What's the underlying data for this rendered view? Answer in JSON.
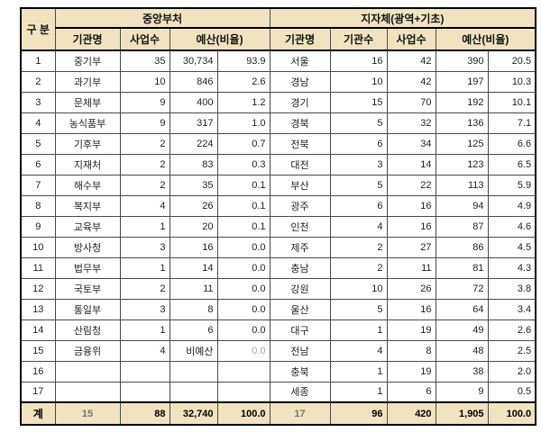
{
  "colors": {
    "header_bg": "#f2e3c0",
    "outer_border": "#000000",
    "inner_border": "#4a4a4a",
    "muted_text": "#a6a6a6"
  },
  "table": {
    "headers": {
      "corner": "구 분",
      "central": {
        "title": "중앙부처",
        "cols": {
          "name": "기관명",
          "projects": "사업수",
          "budget": "예산(비율)"
        }
      },
      "local": {
        "title": "지자체(광역+기초)",
        "cols": {
          "name": "기관명",
          "orgs": "기관수",
          "projects": "사업수",
          "budget": "예산(비율)"
        }
      }
    },
    "rows": [
      {
        "no": "1",
        "c_name": "중기부",
        "c_proj": "35",
        "c_budget": "30,734",
        "c_ratio": "93.9",
        "c_ratio_muted": false,
        "l_name": "서울",
        "l_orgs": "16",
        "l_proj": "42",
        "l_budget": "390",
        "l_ratio": "20.5"
      },
      {
        "no": "2",
        "c_name": "과기부",
        "c_proj": "10",
        "c_budget": "846",
        "c_ratio": "2.6",
        "c_ratio_muted": false,
        "l_name": "경남",
        "l_orgs": "10",
        "l_proj": "42",
        "l_budget": "197",
        "l_ratio": "10.3"
      },
      {
        "no": "3",
        "c_name": "문체부",
        "c_proj": "9",
        "c_budget": "400",
        "c_ratio": "1.2",
        "c_ratio_muted": false,
        "l_name": "경기",
        "l_orgs": "15",
        "l_proj": "70",
        "l_budget": "192",
        "l_ratio": "10.1"
      },
      {
        "no": "4",
        "c_name": "농식품부",
        "c_proj": "9",
        "c_budget": "317",
        "c_ratio": "1.0",
        "c_ratio_muted": false,
        "l_name": "경북",
        "l_orgs": "5",
        "l_proj": "32",
        "l_budget": "136",
        "l_ratio": "7.1"
      },
      {
        "no": "5",
        "c_name": "기후부",
        "c_proj": "2",
        "c_budget": "224",
        "c_ratio": "0.7",
        "c_ratio_muted": false,
        "l_name": "전북",
        "l_orgs": "6",
        "l_proj": "34",
        "l_budget": "125",
        "l_ratio": "6.6"
      },
      {
        "no": "6",
        "c_name": "지재처",
        "c_proj": "2",
        "c_budget": "83",
        "c_ratio": "0.3",
        "c_ratio_muted": false,
        "l_name": "대전",
        "l_orgs": "3",
        "l_proj": "14",
        "l_budget": "123",
        "l_ratio": "6.5"
      },
      {
        "no": "7",
        "c_name": "해수부",
        "c_proj": "2",
        "c_budget": "35",
        "c_ratio": "0.1",
        "c_ratio_muted": false,
        "l_name": "부산",
        "l_orgs": "5",
        "l_proj": "22",
        "l_budget": "113",
        "l_ratio": "5.9"
      },
      {
        "no": "8",
        "c_name": "복지부",
        "c_proj": "4",
        "c_budget": "26",
        "c_ratio": "0.1",
        "c_ratio_muted": false,
        "l_name": "광주",
        "l_orgs": "6",
        "l_proj": "16",
        "l_budget": "94",
        "l_ratio": "4.9"
      },
      {
        "no": "9",
        "c_name": "교육부",
        "c_proj": "1",
        "c_budget": "20",
        "c_ratio": "0.1",
        "c_ratio_muted": false,
        "l_name": "인천",
        "l_orgs": "4",
        "l_proj": "16",
        "l_budget": "87",
        "l_ratio": "4.6"
      },
      {
        "no": "10",
        "c_name": "방사청",
        "c_proj": "3",
        "c_budget": "16",
        "c_ratio": "0.0",
        "c_ratio_muted": false,
        "l_name": "제주",
        "l_orgs": "2",
        "l_proj": "27",
        "l_budget": "86",
        "l_ratio": "4.5"
      },
      {
        "no": "11",
        "c_name": "법무부",
        "c_proj": "1",
        "c_budget": "14",
        "c_ratio": "0.0",
        "c_ratio_muted": false,
        "l_name": "충남",
        "l_orgs": "2",
        "l_proj": "11",
        "l_budget": "81",
        "l_ratio": "4.3"
      },
      {
        "no": "12",
        "c_name": "국토부",
        "c_proj": "2",
        "c_budget": "11",
        "c_ratio": "0.0",
        "c_ratio_muted": false,
        "l_name": "강원",
        "l_orgs": "10",
        "l_proj": "26",
        "l_budget": "72",
        "l_ratio": "3.8"
      },
      {
        "no": "13",
        "c_name": "통일부",
        "c_proj": "3",
        "c_budget": "8",
        "c_ratio": "0.0",
        "c_ratio_muted": false,
        "l_name": "울산",
        "l_orgs": "5",
        "l_proj": "16",
        "l_budget": "64",
        "l_ratio": "3.4"
      },
      {
        "no": "14",
        "c_name": "산림청",
        "c_proj": "1",
        "c_budget": "6",
        "c_ratio": "0.0",
        "c_ratio_muted": false,
        "l_name": "대구",
        "l_orgs": "1",
        "l_proj": "19",
        "l_budget": "49",
        "l_ratio": "2.6"
      },
      {
        "no": "15",
        "c_name": "금융위",
        "c_proj": "4",
        "c_budget": "비예산",
        "c_ratio": "0.0",
        "c_ratio_muted": true,
        "l_name": "전남",
        "l_orgs": "4",
        "l_proj": "8",
        "l_budget": "48",
        "l_ratio": "2.5"
      },
      {
        "no": "16",
        "c_name": "",
        "c_proj": "",
        "c_budget": "",
        "c_ratio": "",
        "c_ratio_muted": false,
        "l_name": "충북",
        "l_orgs": "1",
        "l_proj": "19",
        "l_budget": "38",
        "l_ratio": "2.0"
      },
      {
        "no": "17",
        "c_name": "",
        "c_proj": "",
        "c_budget": "",
        "c_ratio": "",
        "c_ratio_muted": false,
        "l_name": "세종",
        "l_orgs": "1",
        "l_proj": "6",
        "l_budget": "9",
        "l_ratio": "0.5"
      }
    ],
    "total": {
      "label": "계",
      "c_count": "15",
      "c_proj": "88",
      "c_budget": "32,740",
      "c_ratio": "100.0",
      "l_count": "17",
      "l_orgs": "96",
      "l_proj": "420",
      "l_budget": "1,905",
      "l_ratio": "100.0"
    }
  }
}
